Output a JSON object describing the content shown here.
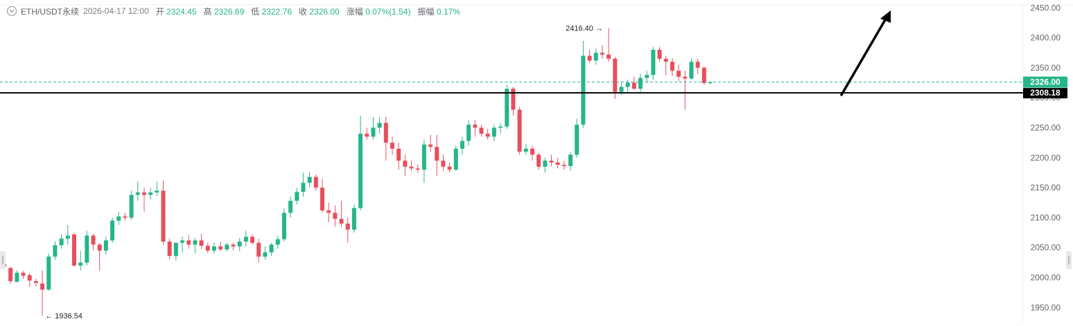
{
  "info_bar": {
    "symbol": "ETH/USDT永续",
    "datetime": "2026-04-17 12:00",
    "open_label": "开",
    "open": "2324.45",
    "high_label": "高",
    "high": "2326.69",
    "low_label": "低",
    "low": "2322.76",
    "close_label": "收",
    "close": "2326.00",
    "change_label": "涨幅",
    "change": "0.07%(1.54)",
    "amplitude_label": "振幅",
    "amplitude": "0.17%"
  },
  "colors": {
    "up": "#26b589",
    "down": "#e84e5c",
    "axis_text": "#5f6368",
    "price_line": "#26b589",
    "level_line": "#000000"
  },
  "price_tag": "2326.00",
  "level_tag": "2308.18",
  "annotations": {
    "high_marker": "2416.40 →",
    "low_marker": "← 1936.54"
  },
  "chart_data": {
    "type": "candlestick",
    "y_ticks": [
      "2450.00",
      "2400.00",
      "2350.00",
      "2300.00",
      "2250.00",
      "2200.00",
      "2150.00",
      "2100.00",
      "2050.00",
      "2000.00",
      "1950.00"
    ],
    "ylim": [
      1925,
      2463
    ],
    "current_price": 2326.0,
    "horizontal_level": 2308.18,
    "high_marker_value": 2416.4,
    "low_marker_value": 1936.54,
    "candles": [
      [
        2023,
        2025,
        2015,
        2018
      ],
      [
        2016,
        2018,
        1990,
        1994
      ],
      [
        1993,
        2012,
        1992,
        2008
      ],
      [
        2008,
        2011,
        1998,
        2003
      ],
      [
        2004,
        2007,
        1985,
        1995
      ],
      [
        1994,
        1998,
        1985,
        1991
      ],
      [
        1990,
        2012,
        1936.54,
        1980
      ],
      [
        1980,
        2040,
        1978,
        2035
      ],
      [
        2035,
        2060,
        2030,
        2054
      ],
      [
        2054,
        2072,
        2048,
        2065
      ],
      [
        2065,
        2088,
        2055,
        2070
      ],
      [
        2072,
        2075,
        2018,
        2020
      ],
      [
        2020,
        2045,
        2012,
        2025
      ],
      [
        2025,
        2078,
        2020,
        2070
      ],
      [
        2070,
        2073,
        2045,
        2055
      ],
      [
        2055,
        2058,
        2012,
        2045
      ],
      [
        2045,
        2068,
        2038,
        2062
      ],
      [
        2062,
        2100,
        2058,
        2095
      ],
      [
        2095,
        2110,
        2088,
        2102
      ],
      [
        2102,
        2108,
        2095,
        2100
      ],
      [
        2100,
        2145,
        2096,
        2138
      ],
      [
        2138,
        2160,
        2128,
        2142
      ],
      [
        2142,
        2150,
        2110,
        2138
      ],
      [
        2138,
        2150,
        2130,
        2142
      ],
      [
        2142,
        2160,
        2136,
        2145
      ],
      [
        2145,
        2162,
        2055,
        2060
      ],
      [
        2060,
        2065,
        2030,
        2036
      ],
      [
        2036,
        2058,
        2028,
        2058
      ],
      [
        2058,
        2068,
        2042,
        2062
      ],
      [
        2062,
        2071,
        2048,
        2055
      ],
      [
        2055,
        2066,
        2040,
        2062
      ],
      [
        2062,
        2073,
        2048,
        2053
      ],
      [
        2053,
        2058,
        2041,
        2045
      ],
      [
        2045,
        2058,
        2040,
        2052
      ],
      [
        2052,
        2060,
        2044,
        2047
      ],
      [
        2047,
        2058,
        2043,
        2055
      ],
      [
        2055,
        2058,
        2045,
        2052
      ],
      [
        2052,
        2066,
        2044,
        2060
      ],
      [
        2060,
        2078,
        2052,
        2068
      ],
      [
        2068,
        2072,
        2055,
        2058
      ],
      [
        2058,
        2065,
        2025,
        2035
      ],
      [
        2035,
        2052,
        2030,
        2042
      ],
      [
        2042,
        2058,
        2036,
        2055
      ],
      [
        2055,
        2070,
        2048,
        2064
      ],
      [
        2064,
        2115,
        2060,
        2108
      ],
      [
        2108,
        2135,
        2100,
        2128
      ],
      [
        2128,
        2150,
        2122,
        2143
      ],
      [
        2143,
        2175,
        2135,
        2158
      ],
      [
        2158,
        2176,
        2150,
        2168
      ],
      [
        2168,
        2172,
        2145,
        2150
      ],
      [
        2150,
        2165,
        2108,
        2112
      ],
      [
        2112,
        2125,
        2092,
        2108
      ],
      [
        2108,
        2120,
        2085,
        2098
      ],
      [
        2098,
        2128,
        2085,
        2090
      ],
      [
        2090,
        2100,
        2058,
        2080
      ],
      [
        2080,
        2122,
        2075,
        2116
      ],
      [
        2116,
        2270,
        2112,
        2240
      ],
      [
        2240,
        2250,
        2230,
        2235
      ],
      [
        2235,
        2268,
        2230,
        2250
      ],
      [
        2250,
        2268,
        2240,
        2258
      ],
      [
        2258,
        2268,
        2195,
        2225
      ],
      [
        2225,
        2235,
        2205,
        2215
      ],
      [
        2215,
        2225,
        2180,
        2195
      ],
      [
        2195,
        2205,
        2170,
        2185
      ],
      [
        2185,
        2195,
        2178,
        2182
      ],
      [
        2182,
        2188,
        2175,
        2180
      ],
      [
        2180,
        2230,
        2158,
        2222
      ],
      [
        2222,
        2238,
        2210,
        2218
      ],
      [
        2218,
        2238,
        2170,
        2195
      ],
      [
        2195,
        2205,
        2178,
        2185
      ],
      [
        2185,
        2192,
        2175,
        2180
      ],
      [
        2180,
        2220,
        2178,
        2215
      ],
      [
        2215,
        2235,
        2205,
        2228
      ],
      [
        2228,
        2262,
        2220,
        2255
      ],
      [
        2255,
        2263,
        2235,
        2250
      ],
      [
        2250,
        2255,
        2235,
        2240
      ],
      [
        2240,
        2248,
        2230,
        2235
      ],
      [
        2235,
        2255,
        2228,
        2250
      ],
      [
        2250,
        2258,
        2240,
        2252
      ],
      [
        2252,
        2322,
        2248,
        2315
      ],
      [
        2315,
        2318,
        2270,
        2280
      ],
      [
        2280,
        2285,
        2205,
        2210
      ],
      [
        2210,
        2222,
        2205,
        2215
      ],
      [
        2215,
        2220,
        2195,
        2205
      ],
      [
        2205,
        2208,
        2180,
        2185
      ],
      [
        2185,
        2200,
        2175,
        2195
      ],
      [
        2195,
        2205,
        2186,
        2192
      ],
      [
        2192,
        2200,
        2182,
        2188
      ],
      [
        2188,
        2195,
        2180,
        2186
      ],
      [
        2186,
        2210,
        2178,
        2205
      ],
      [
        2205,
        2265,
        2200,
        2255
      ],
      [
        2255,
        2395,
        2250,
        2370
      ],
      [
        2370,
        2380,
        2358,
        2362
      ],
      [
        2362,
        2382,
        2355,
        2375
      ],
      [
        2375,
        2388,
        2365,
        2372
      ],
      [
        2372,
        2416.4,
        2360,
        2365
      ],
      [
        2365,
        2368,
        2298,
        2310
      ],
      [
        2310,
        2325,
        2305,
        2318
      ],
      [
        2318,
        2330,
        2310,
        2325
      ],
      [
        2325,
        2335,
        2313,
        2315
      ],
      [
        2315,
        2340,
        2310,
        2333
      ],
      [
        2333,
        2345,
        2325,
        2338
      ],
      [
        2338,
        2385,
        2330,
        2380
      ],
      [
        2380,
        2385,
        2360,
        2365
      ],
      [
        2365,
        2370,
        2338,
        2360
      ],
      [
        2360,
        2366,
        2336,
        2345
      ],
      [
        2345,
        2355,
        2328,
        2335
      ],
      [
        2335,
        2345,
        2280,
        2332
      ],
      [
        2332,
        2365,
        2330,
        2360
      ],
      [
        2360,
        2365,
        2340,
        2350
      ],
      [
        2350,
        2352,
        2322,
        2324.45
      ],
      [
        2324.45,
        2326.69,
        2322.76,
        2326
      ]
    ]
  }
}
